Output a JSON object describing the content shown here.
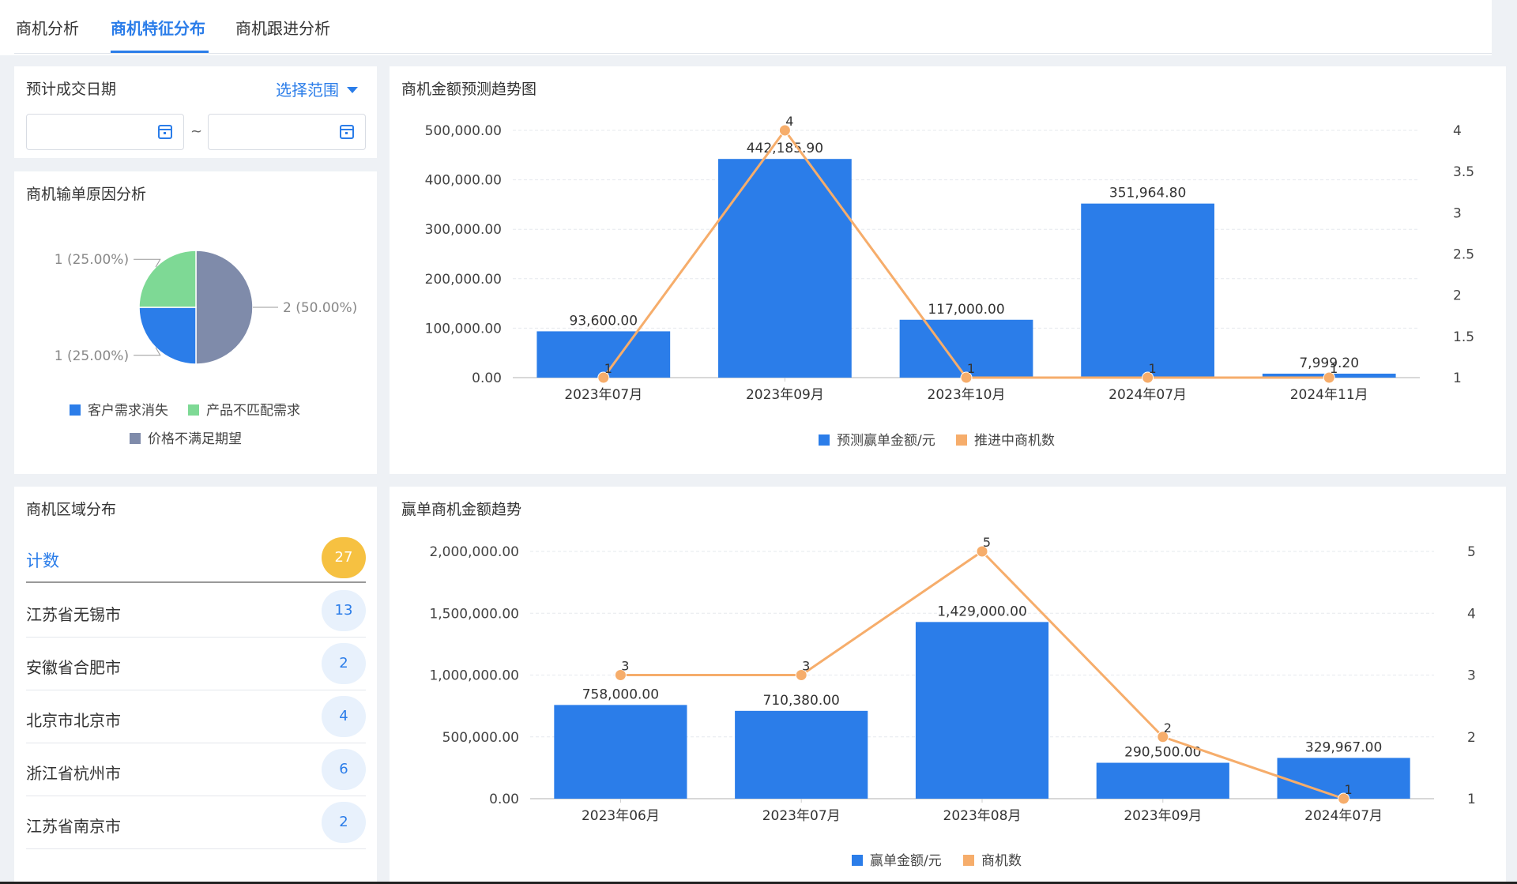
{
  "tabs": [
    {
      "label": "商机分析"
    },
    {
      "label": "商机特征分布"
    },
    {
      "label": "商机跟进分析"
    }
  ],
  "date_filter": {
    "title": "预计成交日期",
    "range_button": "选择范围",
    "start_value": "",
    "end_value": "",
    "separator": "~"
  },
  "loss_reason": {
    "title": "商机输单原因分析",
    "slices": [
      {
        "name": "客户需求消失",
        "value": 1,
        "label": "1 (25.00%)",
        "color": "#2b7de9"
      },
      {
        "name": "产品不匹配需求",
        "value": 1,
        "label": "1 (25.00%)",
        "color": "#7ed995"
      },
      {
        "name": "价格不满足期望",
        "value": 2,
        "label": "2 (50.00%)",
        "color": "#7f8baa"
      }
    ]
  },
  "region": {
    "title": "商机区域分布",
    "header_label": "计数",
    "total": "27",
    "rows": [
      {
        "name": "江苏省无锡市",
        "count": "13"
      },
      {
        "name": "安徽省合肥市",
        "count": "2"
      },
      {
        "name": "北京市北京市",
        "count": "4"
      },
      {
        "name": "浙江省杭州市",
        "count": "6"
      },
      {
        "name": "江苏省南京市",
        "count": "2"
      }
    ]
  },
  "forecast": {
    "title": "商机金额预测趋势图",
    "legend": [
      "预测赢单金额/元",
      "推进中商机数"
    ]
  },
  "won": {
    "title": "赢单商机金额趋势",
    "legend": [
      "赢单金额/元",
      "商机数"
    ]
  },
  "colors": {
    "bar": "#2b7de9",
    "line": "#f6ad6b",
    "accent": "#2b7de9",
    "badge": "#f6c141"
  },
  "chart_data": [
    {
      "type": "bar",
      "title": "商机金额预测趋势图",
      "categories": [
        "2023年07月",
        "2023年09月",
        "2023年10月",
        "2024年07月",
        "2024年11月"
      ],
      "series": [
        {
          "name": "预测赢单金额/元",
          "type": "bar",
          "axis": "left",
          "values": [
            93600.0,
            442185.9,
            117000.0,
            351964.8,
            7999.2
          ],
          "labels": [
            "93,600.00",
            "442,185.90",
            "117,000.00",
            "351,964.80",
            "7,999.20"
          ]
        },
        {
          "name": "推进中商机数",
          "type": "line",
          "axis": "right",
          "values": [
            1,
            4,
            1,
            1,
            1
          ],
          "labels": [
            "1",
            "4",
            "1",
            "1",
            "1"
          ]
        }
      ],
      "ylim": [
        0,
        500000
      ],
      "y_ticks": [
        "0.00",
        "100,000.00",
        "200,000.00",
        "300,000.00",
        "400,000.00",
        "500,000.00"
      ],
      "y2lim": [
        1,
        4
      ],
      "y2_ticks": [
        "1",
        "1.5",
        "2",
        "2.5",
        "3",
        "3.5",
        "4"
      ],
      "legend_position": "bottom",
      "grid": true
    },
    {
      "type": "bar",
      "title": "赢单商机金额趋势",
      "categories": [
        "2023年06月",
        "2023年07月",
        "2023年08月",
        "2023年09月",
        "2024年07月"
      ],
      "series": [
        {
          "name": "赢单金额/元",
          "type": "bar",
          "axis": "left",
          "values": [
            758000.0,
            710380.0,
            1429000.0,
            290500.0,
            329967.0
          ],
          "labels": [
            "758,000.00",
            "710,380.00",
            "1,429,000.00",
            "290,500.00",
            "329,967.00"
          ]
        },
        {
          "name": "商机数",
          "type": "line",
          "axis": "right",
          "values": [
            3,
            3,
            5,
            2,
            1
          ],
          "labels": [
            "3",
            "3",
            "5",
            "2",
            "1"
          ]
        }
      ],
      "ylim": [
        0,
        2000000
      ],
      "y_ticks": [
        "0.00",
        "500,000.00",
        "1,000,000.00",
        "1,500,000.00",
        "2,000,000.00"
      ],
      "y2lim": [
        1,
        5
      ],
      "y2_ticks": [
        "1",
        "2",
        "3",
        "4",
        "5"
      ],
      "legend_position": "bottom",
      "grid": true
    }
  ]
}
